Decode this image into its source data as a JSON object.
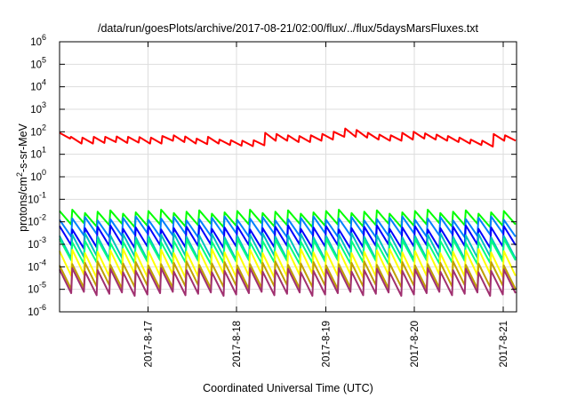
{
  "chart_data": {
    "type": "line",
    "title": "/data/run/goesPlots/archive/2017-08-21/02:00/flux/../flux/5daysMarsFluxes.txt",
    "xlabel": "Coordinated Universal Time (UTC)",
    "ylabel_parts": [
      "protons/cm",
      "2",
      "-s-sr-MeV"
    ],
    "y_scale": "log",
    "ylim_exp": [
      -6,
      6
    ],
    "y_tick_exponents": [
      -6,
      -5,
      -4,
      -3,
      -2,
      -1,
      0,
      1,
      2,
      3,
      4,
      5,
      6
    ],
    "y_tick_base": "10",
    "xlim_days": [
      2017.816,
      2017.8211
    ],
    "x_tick_labels": [
      "2017-8-17",
      "2017-8-18",
      "2017-8-19",
      "2017-8-20",
      "2017-8-21"
    ],
    "grid": true,
    "legend": "none",
    "series": [
      {
        "color": "#ff0000",
        "cycles": 36,
        "hi": [
          90,
          60,
          55,
          60,
          60,
          62,
          60,
          58,
          55,
          65,
          70,
          62,
          50,
          60,
          45,
          42,
          40,
          42,
          90,
          80,
          70,
          65,
          70,
          80,
          100,
          140,
          120,
          90,
          75,
          70,
          90,
          100,
          85,
          75,
          65,
          55,
          45,
          40,
          80,
          70
        ],
        "lo": [
          50,
          30,
          30,
          32,
          35,
          32,
          33,
          30,
          30,
          40,
          35,
          30,
          28,
          30,
          26,
          24,
          23,
          25,
          40,
          40,
          35,
          35,
          40,
          45,
          60,
          60,
          55,
          45,
          40,
          40,
          45,
          50,
          45,
          40,
          35,
          30,
          26,
          22,
          40,
          40
        ]
      },
      {
        "color": "#00ff00",
        "cycles": 36,
        "hi_exp": -1.55,
        "lo_exp": -2.15
      },
      {
        "color": "#0080ff",
        "cycles": 36,
        "hi_exp": -1.85,
        "lo_exp": -2.6
      },
      {
        "color": "#0000ff",
        "cycles": 36,
        "hi_exp": -2.25,
        "lo_exp": -3.1
      },
      {
        "color": "#00c0c0",
        "cycles": 36,
        "hi_exp": -2.6,
        "lo_exp": -3.6
      },
      {
        "color": "#00ff80",
        "cycles": 36,
        "hi_exp": -2.85,
        "lo_exp": -3.8
      },
      {
        "color": "#ffff00",
        "cycles": 36,
        "hi_exp": -3.3,
        "lo_exp": -4.4
      },
      {
        "color": "#c0a000",
        "cycles": 36,
        "hi_exp": -3.85,
        "lo_exp": -4.9
      },
      {
        "color": "#a03070",
        "cycles": 36,
        "hi_exp": -4.15,
        "lo_exp": -5.2
      }
    ]
  }
}
